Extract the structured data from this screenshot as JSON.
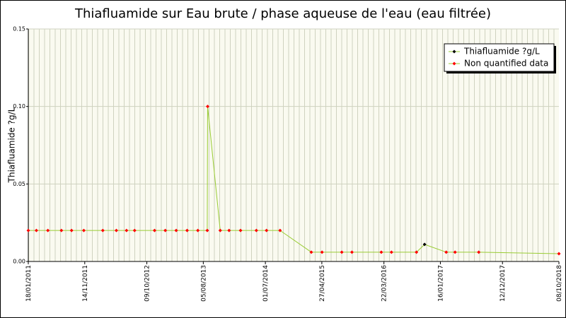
{
  "chart_data": {
    "type": "line",
    "title": "Thiafluamide sur Eau brute / phase aqueuse de l'eau (eau filtrée)",
    "y_label": "Thiafluamide ?g/L",
    "x": [
      "18/01/2011",
      "02/03/2011",
      "02/05/2011",
      "13/07/2011",
      "05/09/2011",
      "09/11/2011",
      "18/02/2012",
      "30/04/2012",
      "23/06/2012",
      "05/08/2012",
      "19/11/2012",
      "15/01/2013",
      "14/03/2013",
      "11/05/2013",
      "07/07/2013",
      "26/08/2013",
      "28/08/2013",
      "03/11/2013",
      "20/12/2013",
      "19/02/2014",
      "14/05/2014",
      "07/07/2014",
      "17/09/2014",
      "02/03/2015",
      "28/04/2015",
      "11/08/2015",
      "04/10/2015",
      "08/03/2016",
      "01/05/2016",
      "11/09/2016",
      "24/10/2016",
      "16/02/2017",
      "04/04/2017",
      "08/08/2017",
      "08/10/2018"
    ],
    "series": [
      {
        "name": "Thiafluamide ?g/L",
        "color": "#000000",
        "values": [
          null,
          null,
          null,
          null,
          null,
          null,
          null,
          null,
          null,
          null,
          null,
          null,
          null,
          null,
          null,
          null,
          null,
          null,
          null,
          null,
          null,
          null,
          null,
          null,
          null,
          null,
          null,
          null,
          null,
          null,
          0.011,
          null,
          null,
          null,
          null
        ]
      },
      {
        "name": "Non quantified data",
        "color": "#ff0000",
        "values": [
          0.02,
          0.02,
          0.02,
          0.02,
          0.02,
          0.02,
          0.02,
          0.02,
          0.02,
          0.02,
          0.02,
          0.02,
          0.02,
          0.02,
          0.02,
          0.02,
          0.1,
          0.02,
          0.02,
          0.02,
          0.02,
          0.02,
          0.02,
          0.006,
          0.006,
          0.006,
          0.006,
          0.006,
          0.006,
          0.006,
          null,
          0.006,
          0.006,
          0.006,
          0.005
        ]
      }
    ],
    "line_color": "#99cc33",
    "xlim": [
      "18/01/2011",
      "08/10/2018"
    ],
    "xticks": [
      "18/01/2011",
      "14/11/2011",
      "09/10/2012",
      "05/08/2013",
      "01/07/2014",
      "27/04/2015",
      "22/03/2016",
      "16/01/2017",
      "12/12/2017",
      "08/10/2018"
    ],
    "ylim": [
      0,
      0.15
    ],
    "yticks": [
      {
        "value": 0,
        "label": "0.00"
      },
      0.05,
      {
        "value": 0.1,
        "label": "0.10"
      },
      0.15
    ],
    "grid": true,
    "legend": "top-right"
  }
}
